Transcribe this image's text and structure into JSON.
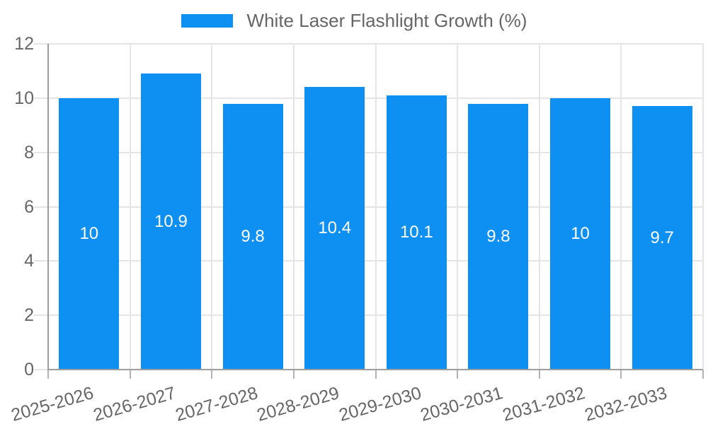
{
  "legend": {
    "label": "White Laser Flashlight Growth (%)"
  },
  "chart_data": {
    "type": "bar",
    "title": "White Laser Flashlight Growth (%)",
    "categories": [
      "2025-2026",
      "2026-2027",
      "2027-2028",
      "2028-2029",
      "2029-2030",
      "2030-2031",
      "2031-2032",
      "2032-2033"
    ],
    "values": [
      10,
      10.9,
      9.8,
      10.4,
      10.1,
      9.8,
      10,
      9.7
    ],
    "value_labels": [
      "10",
      "10.9",
      "9.8",
      "10.4",
      "10.1",
      "9.8",
      "10",
      "9.7"
    ],
    "series": [
      {
        "name": "White Laser Flashlight Growth (%)",
        "values": [
          10,
          10.9,
          9.8,
          10.4,
          10.1,
          9.8,
          10,
          9.7
        ]
      }
    ],
    "xlabel": "",
    "ylabel": "",
    "ylim": [
      0,
      12
    ],
    "yticks": [
      0,
      2,
      4,
      6,
      8,
      10,
      12
    ],
    "ytick_labels": [
      "0",
      "2",
      "4",
      "6",
      "8",
      "10",
      "12"
    ],
    "grid": true,
    "legend_position": "top",
    "colors": {
      "bar": "#0e90f2",
      "grid": "#e5e5e5",
      "axis": "#9e9e9e",
      "xtick_mark": "#b3b3b3",
      "tick_text": "#666666",
      "value_label": "#ffffff"
    }
  }
}
